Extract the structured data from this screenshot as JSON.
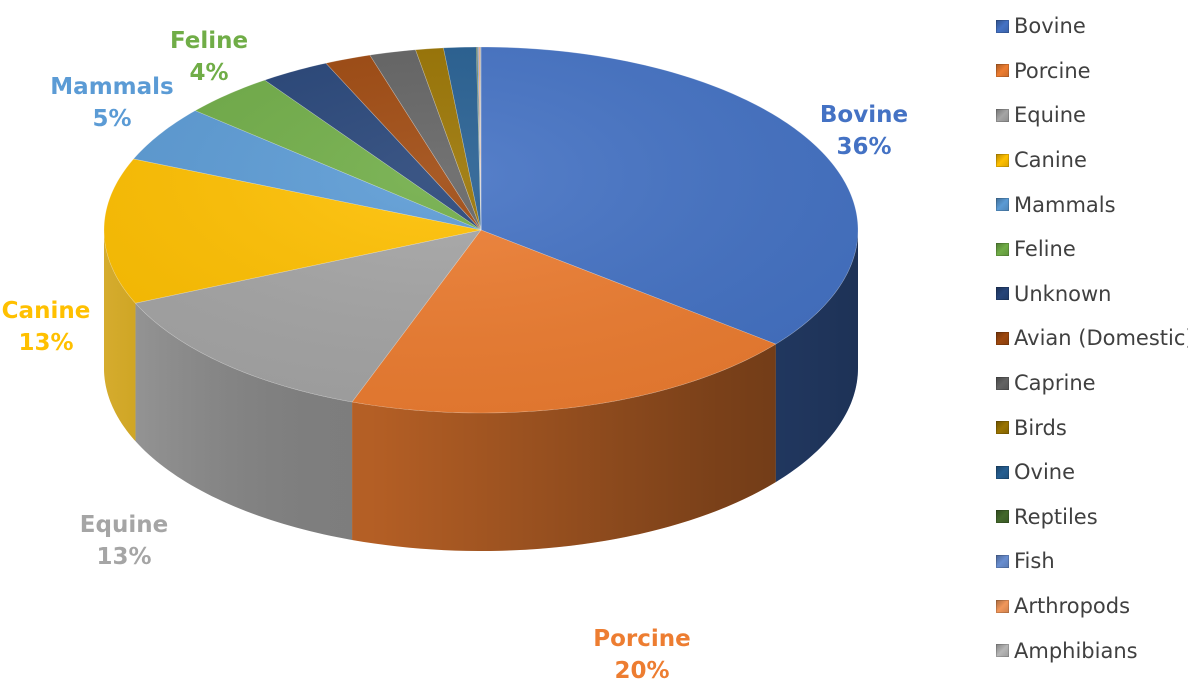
{
  "chart_data": {
    "type": "pie",
    "title": "",
    "legend_position": "right",
    "slices": [
      {
        "label": "Bovine",
        "value": 36,
        "display": "36%",
        "color": "#4472C4",
        "show_label": true
      },
      {
        "label": "Porcine",
        "value": 20,
        "display": "20%",
        "color": "#ED7D31",
        "show_label": true
      },
      {
        "label": "Equine",
        "value": 13,
        "display": "13%",
        "color": "#A5A5A5",
        "show_label": true
      },
      {
        "label": "Canine",
        "value": 13,
        "display": "13%",
        "color": "#FFC000",
        "show_label": true
      },
      {
        "label": "Mammals",
        "value": 5,
        "display": "5%",
        "color": "#5B9BD5",
        "show_label": true
      },
      {
        "label": "Feline",
        "value": 4,
        "display": "4%",
        "color": "#70AD47",
        "show_label": true
      },
      {
        "label": "Unknown",
        "value": 3,
        "color": "#264478",
        "show_label": false
      },
      {
        "label": "Avian (Domestic)",
        "value": 2,
        "color": "#9E480E",
        "show_label": false
      },
      {
        "label": "Caprine",
        "value": 2,
        "color": "#636363",
        "show_label": false
      },
      {
        "label": "Birds",
        "value": 1.2,
        "color": "#997300",
        "show_label": false
      },
      {
        "label": "Ovine",
        "value": 1.4,
        "color": "#255E91",
        "show_label": false
      },
      {
        "label": "Reptiles",
        "value": 0.05,
        "color": "#43682B",
        "show_label": false
      },
      {
        "label": "Fish",
        "value": 0.05,
        "color": "#698ED0",
        "show_label": false
      },
      {
        "label": "Arthropods",
        "value": 0.05,
        "color": "#F1975A",
        "show_label": false
      },
      {
        "label": "Amphibians",
        "value": 0.05,
        "color": "#B7B7B7",
        "show_label": false
      }
    ]
  }
}
